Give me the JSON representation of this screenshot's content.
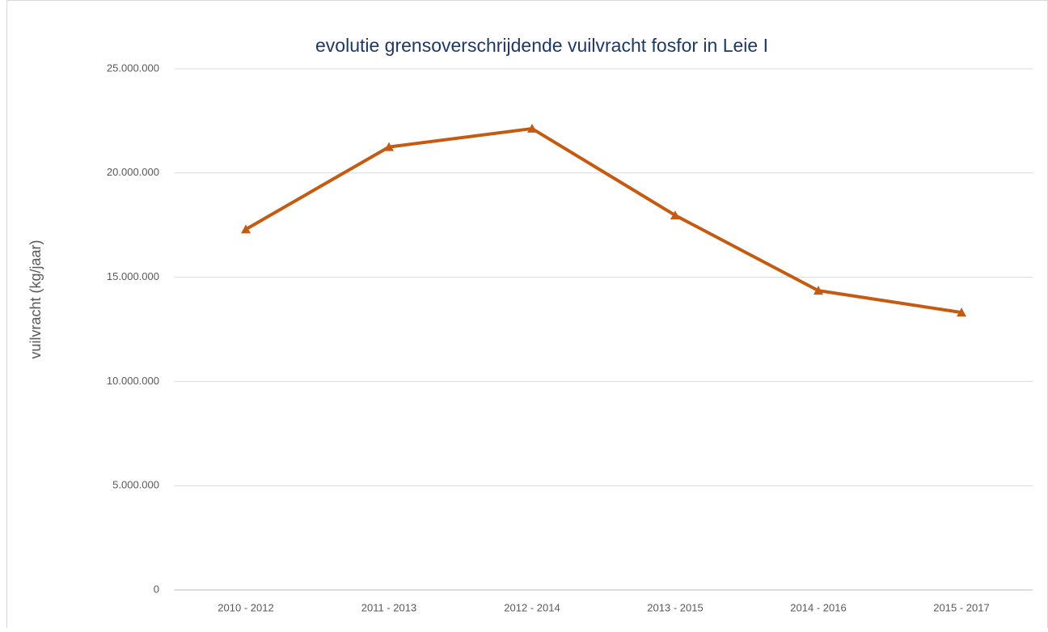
{
  "chart_data": {
    "type": "line",
    "title": "evolutie grensoverschrijdende  vuilvracht fosfor  in  Leie I",
    "y_label": "vuilvracht (kg/jaar)",
    "categories": [
      "2010 - 2012",
      "2011 - 2013",
      "2012 - 2014",
      "2013 - 2015",
      "2014 - 2016",
      "2015 - 2017"
    ],
    "series": [
      {
        "color": "#c55a11",
        "values": [
          17300000,
          21250000,
          22130000,
          17970000,
          14360000,
          13310000
        ]
      }
    ],
    "ylim": [
      0,
      25000000
    ],
    "yticks": [
      0,
      {
        "value": 5000000,
        "label": "5.000.000"
      },
      {
        "value": 10000000,
        "label": "10.000.000"
      },
      {
        "value": 15000000,
        "label": "15.000.000"
      },
      {
        "value": 20000000,
        "label": "20.000.000"
      },
      {
        "value": 25000000,
        "label": "25.000.000"
      }
    ],
    "grid": true
  }
}
